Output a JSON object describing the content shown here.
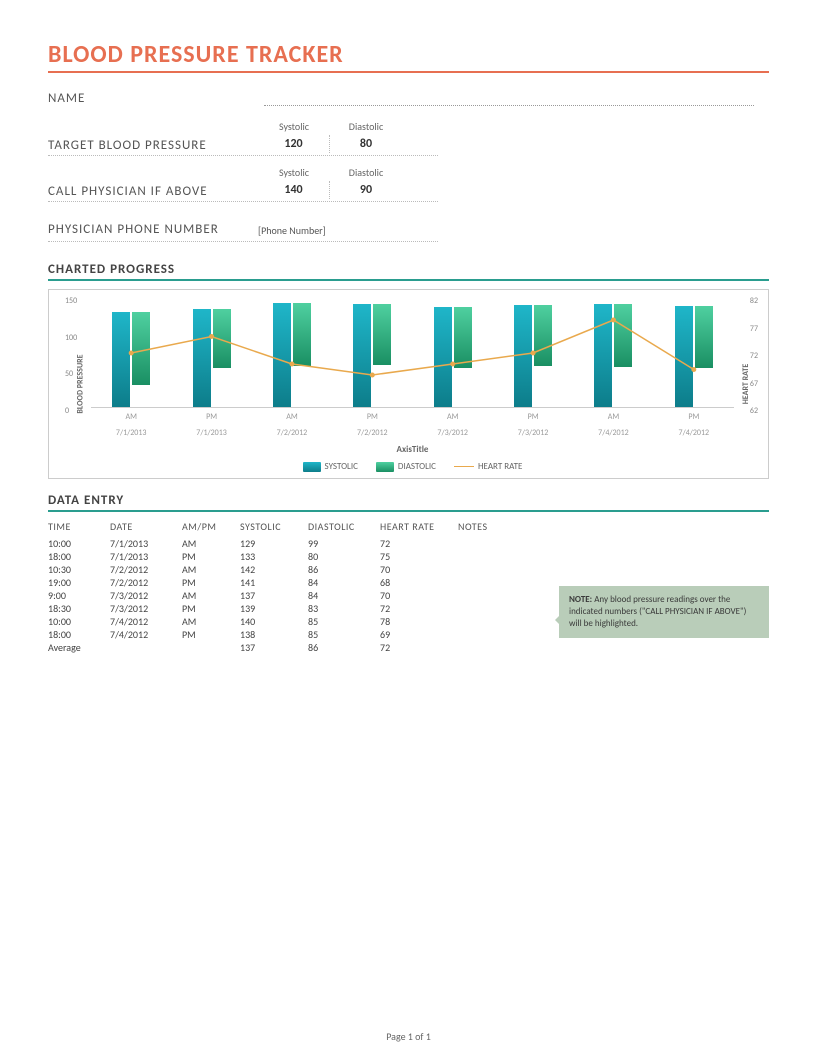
{
  "title": "BLOOD PRESSURE TRACKER",
  "labels": {
    "name": "NAME",
    "target": "TARGET BLOOD PRESSURE",
    "call_above": "CALL PHYSICIAN IF ABOVE",
    "phys_phone": "PHYSICIAN PHONE NUMBER",
    "systolic": "Systolic",
    "diastolic": "Diastolic",
    "phone_placeholder": "[Phone Number]"
  },
  "targets": {
    "systolic": "120",
    "diastolic": "80"
  },
  "call_above": {
    "systolic": "140",
    "diastolic": "90"
  },
  "sections": {
    "chart": "CHARTED PROGRESS",
    "data": "DATA ENTRY"
  },
  "chart": {
    "type": "bar+line",
    "y_left_label": "BLOOD PRESSURE",
    "y_right_label": "HEART RATE",
    "y_left_ticks": [
      0,
      50,
      100,
      150
    ],
    "y_left_max": 150,
    "y_right_ticks": [
      62,
      67,
      72,
      77,
      82
    ],
    "y_right_min": 62,
    "y_right_max": 82,
    "x_axis_title": "AxisTitle",
    "categories": [
      {
        "ampm": "AM",
        "date": "7/1/2013"
      },
      {
        "ampm": "PM",
        "date": "7/1/2013"
      },
      {
        "ampm": "AM",
        "date": "7/2/2012"
      },
      {
        "ampm": "PM",
        "date": "7/2/2012"
      },
      {
        "ampm": "AM",
        "date": "7/3/2012"
      },
      {
        "ampm": "PM",
        "date": "7/3/2012"
      },
      {
        "ampm": "AM",
        "date": "7/4/2012"
      },
      {
        "ampm": "PM",
        "date": "7/4/2012"
      }
    ],
    "systolic": [
      129,
      133,
      142,
      141,
      137,
      139,
      140,
      138
    ],
    "diastolic": [
      99,
      80,
      86,
      84,
      84,
      83,
      85,
      85
    ],
    "heart_rate": [
      72,
      75,
      70,
      68,
      70,
      72,
      78,
      69
    ],
    "colors": {
      "systolic_top": "#1fb6c9",
      "systolic_bottom": "#0d7d8a",
      "diastolic_top": "#4fd0a0",
      "diastolic_bottom": "#1a8f63",
      "heart_line": "#e9a94d",
      "grid": "#e0e0e0",
      "border": "#cccccc"
    },
    "legend": {
      "systolic": "SYSTOLIC",
      "diastolic": "DIASTOLIC",
      "heart": "HEART RATE"
    }
  },
  "table": {
    "columns": [
      "TIME",
      "DATE",
      "AM/PM",
      "SYSTOLIC",
      "DIASTOLIC",
      "HEART RATE",
      "NOTES"
    ],
    "rows": [
      [
        "10:00",
        "7/1/2013",
        "AM",
        "129",
        "99",
        "72",
        ""
      ],
      [
        "18:00",
        "7/1/2013",
        "PM",
        "133",
        "80",
        "75",
        ""
      ],
      [
        "10:30",
        "7/2/2012",
        "AM",
        "142",
        "86",
        "70",
        ""
      ],
      [
        "19:00",
        "7/2/2012",
        "PM",
        "141",
        "84",
        "68",
        ""
      ],
      [
        "9:00",
        "7/3/2012",
        "AM",
        "137",
        "84",
        "70",
        ""
      ],
      [
        "18:30",
        "7/3/2012",
        "PM",
        "139",
        "83",
        "72",
        ""
      ],
      [
        "10:00",
        "7/4/2012",
        "AM",
        "140",
        "85",
        "78",
        ""
      ],
      [
        "18:00",
        "7/4/2012",
        "PM",
        "138",
        "85",
        "69",
        ""
      ],
      [
        "Average",
        "",
        "",
        "137",
        "86",
        "72",
        ""
      ]
    ]
  },
  "note": {
    "bold": "NOTE:",
    "text": " Any blood pressure readings over the indicated numbers (\"CALL PHYSICIAN IF ABOVE\") will be highlighted."
  },
  "footer": "Page 1 of 1"
}
